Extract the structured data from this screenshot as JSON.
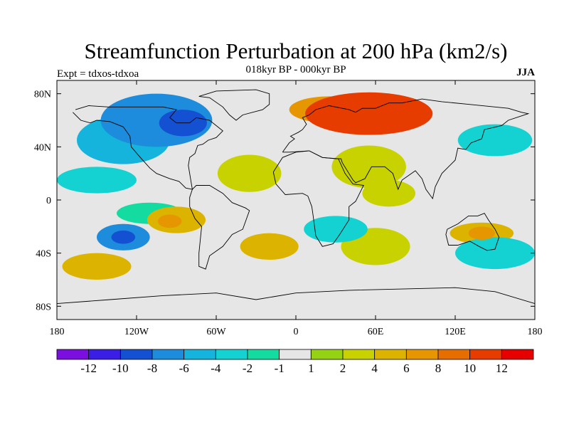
{
  "figure": {
    "title": "Streamfunction Perturbation at 200 hPa (km2/s)",
    "left_label": "Expt = tdxos-tdxoa",
    "center_label": "018kyr BP - 000kyr BP",
    "right_label": "JJA"
  },
  "map": {
    "projection": "cylindrical-equidistant",
    "lon_range": [
      -180,
      180
    ],
    "lat_range": [
      -90,
      90
    ],
    "lon_ticks": [
      {
        "value": -180,
        "label": "180"
      },
      {
        "value": -120,
        "label": "120W"
      },
      {
        "value": -60,
        "label": "60W"
      },
      {
        "value": 0,
        "label": "0"
      },
      {
        "value": 60,
        "label": "60E"
      },
      {
        "value": 120,
        "label": "120E"
      },
      {
        "value": 180,
        "label": "180"
      }
    ],
    "lat_ticks": [
      {
        "value": 80,
        "label": "80N"
      },
      {
        "value": 40,
        "label": "40N"
      },
      {
        "value": 0,
        "label": "0"
      },
      {
        "value": -40,
        "label": "40S"
      },
      {
        "value": -80,
        "label": "80S"
      }
    ],
    "background_color": "#e6e6e6"
  },
  "colorbar": {
    "colors": [
      "#7a0fe0",
      "#3a1ee6",
      "#1450d2",
      "#1e8cdc",
      "#14b4dc",
      "#14d2d2",
      "#14dca0",
      "#e6e6e6",
      "#96d214",
      "#c8d200",
      "#dcb400",
      "#e69600",
      "#e66e00",
      "#e63c00",
      "#e60000"
    ],
    "labels": [
      "-12",
      "-10",
      "-8",
      "-6",
      "-4",
      "-2",
      "-1",
      "1",
      "2",
      "4",
      "6",
      "8",
      "10",
      "12"
    ]
  },
  "field": [
    {
      "lon": -105,
      "lat": 60,
      "value": -8,
      "rx": 42,
      "ry": 20
    },
    {
      "lon": -85,
      "lat": 58,
      "value": -10,
      "rx": 18,
      "ry": 10
    },
    {
      "lon": -130,
      "lat": 45,
      "value": -6,
      "rx": 35,
      "ry": 18
    },
    {
      "lon": -150,
      "lat": 15,
      "value": -4,
      "rx": 30,
      "ry": 10
    },
    {
      "lon": -130,
      "lat": -28,
      "value": -8,
      "rx": 20,
      "ry": 10
    },
    {
      "lon": -130,
      "lat": -28,
      "value": -10,
      "rx": 9,
      "ry": 5
    },
    {
      "lon": -110,
      "lat": -10,
      "value": -2,
      "rx": 25,
      "ry": 8
    },
    {
      "lon": 55,
      "lat": 65,
      "value": 10,
      "rx": 48,
      "ry": 16
    },
    {
      "lon": 25,
      "lat": 68,
      "value": 6,
      "rx": 30,
      "ry": 10
    },
    {
      "lon": -35,
      "lat": 20,
      "value": 2,
      "rx": 24,
      "ry": 14
    },
    {
      "lon": 55,
      "lat": 25,
      "value": 2,
      "rx": 28,
      "ry": 16
    },
    {
      "lon": -90,
      "lat": -15,
      "value": 4,
      "rx": 22,
      "ry": 10
    },
    {
      "lon": -95,
      "lat": -16,
      "value": 6,
      "rx": 9,
      "ry": 5
    },
    {
      "lon": 60,
      "lat": -35,
      "value": 2,
      "rx": 26,
      "ry": 14
    },
    {
      "lon": 30,
      "lat": -22,
      "value": -4,
      "rx": 24,
      "ry": 10
    },
    {
      "lon": 140,
      "lat": -25,
      "value": 4,
      "rx": 24,
      "ry": 8
    },
    {
      "lon": 140,
      "lat": -25,
      "value": 6,
      "rx": 10,
      "ry": 5
    },
    {
      "lon": 150,
      "lat": -40,
      "value": -4,
      "rx": 30,
      "ry": 12
    },
    {
      "lon": 150,
      "lat": 45,
      "value": -4,
      "rx": 28,
      "ry": 12
    },
    {
      "lon": -20,
      "lat": -35,
      "value": 4,
      "rx": 22,
      "ry": 10
    },
    {
      "lon": -150,
      "lat": -50,
      "value": 4,
      "rx": 26,
      "ry": 10
    },
    {
      "lon": 70,
      "lat": 5,
      "value": 2,
      "rx": 20,
      "ry": 10
    }
  ],
  "coastlines": [
    [
      [
        -168,
        66
      ],
      [
        -162,
        60
      ],
      [
        -155,
        58
      ],
      [
        -150,
        60
      ],
      [
        -140,
        59
      ],
      [
        -130,
        55
      ],
      [
        -125,
        48
      ],
      [
        -124,
        40
      ],
      [
        -118,
        33
      ],
      [
        -110,
        24
      ],
      [
        -105,
        20
      ],
      [
        -95,
        16
      ],
      [
        -88,
        14
      ],
      [
        -83,
        9
      ],
      [
        -78,
        8
      ],
      [
        -81,
        26
      ],
      [
        -80,
        32
      ],
      [
        -76,
        35
      ],
      [
        -74,
        41
      ],
      [
        -70,
        42
      ],
      [
        -66,
        45
      ],
      [
        -60,
        47
      ],
      [
        -55,
        52
      ],
      [
        -60,
        56
      ],
      [
        -65,
        60
      ],
      [
        -75,
        62
      ],
      [
        -80,
        58
      ],
      [
        -90,
        58
      ],
      [
        -95,
        62
      ],
      [
        -90,
        68
      ],
      [
        -100,
        70
      ],
      [
        -115,
        70
      ],
      [
        -130,
        70
      ],
      [
        -141,
        70
      ],
      [
        -156,
        71
      ],
      [
        -166,
        68
      ]
    ],
    [
      [
        -78,
        8
      ],
      [
        -75,
        11
      ],
      [
        -65,
        11
      ],
      [
        -55,
        5
      ],
      [
        -48,
        -2
      ],
      [
        -38,
        -6
      ],
      [
        -35,
        -8
      ],
      [
        -40,
        -22
      ],
      [
        -48,
        -26
      ],
      [
        -55,
        -35
      ],
      [
        -65,
        -42
      ],
      [
        -68,
        -52
      ],
      [
        -73,
        -50
      ],
      [
        -73,
        -40
      ],
      [
        -72,
        -30
      ],
      [
        -71,
        -20
      ],
      [
        -76,
        -14
      ],
      [
        -80,
        -5
      ],
      [
        -80,
        2
      ],
      [
        -78,
        8
      ]
    ],
    [
      [
        -10,
        36
      ],
      [
        -5,
        43
      ],
      [
        -1,
        46
      ],
      [
        -4,
        48
      ],
      [
        2,
        51
      ],
      [
        5,
        53
      ],
      [
        8,
        57
      ],
      [
        5,
        62
      ],
      [
        10,
        64
      ],
      [
        15,
        68
      ],
      [
        25,
        71
      ],
      [
        40,
        68
      ],
      [
        45,
        66
      ],
      [
        50,
        69
      ],
      [
        60,
        69
      ],
      [
        70,
        73
      ],
      [
        80,
        73
      ],
      [
        95,
        76
      ],
      [
        110,
        74
      ],
      [
        130,
        72
      ],
      [
        150,
        70
      ],
      [
        160,
        69
      ],
      [
        170,
        66
      ],
      [
        175,
        65
      ],
      [
        160,
        60
      ],
      [
        155,
        56
      ],
      [
        142,
        53
      ],
      [
        140,
        46
      ],
      [
        132,
        43
      ],
      [
        128,
        38
      ],
      [
        122,
        39
      ],
      [
        120,
        30
      ],
      [
        110,
        20
      ],
      [
        105,
        10
      ],
      [
        103,
        1
      ],
      [
        98,
        8
      ],
      [
        95,
        16
      ],
      [
        90,
        22
      ],
      [
        80,
        15
      ],
      [
        77,
        8
      ],
      [
        73,
        20
      ],
      [
        67,
        25
      ],
      [
        57,
        25
      ],
      [
        52,
        16
      ],
      [
        45,
        13
      ],
      [
        43,
        15
      ],
      [
        35,
        28
      ],
      [
        34,
        31
      ],
      [
        30,
        31
      ],
      [
        20,
        32
      ],
      [
        10,
        37
      ],
      [
        -5,
        36
      ],
      [
        -10,
        36
      ]
    ],
    [
      [
        -17,
        21
      ],
      [
        -15,
        12
      ],
      [
        -8,
        4
      ],
      [
        5,
        5
      ],
      [
        9,
        3
      ],
      [
        12,
        -5
      ],
      [
        13,
        -12
      ],
      [
        15,
        -27
      ],
      [
        20,
        -35
      ],
      [
        28,
        -33
      ],
      [
        33,
        -26
      ],
      [
        40,
        -15
      ],
      [
        40,
        -5
      ],
      [
        45,
        -1
      ],
      [
        51,
        11
      ],
      [
        43,
        12
      ],
      [
        37,
        20
      ],
      [
        32,
        31
      ],
      [
        20,
        32
      ],
      [
        10,
        37
      ],
      [
        0,
        36
      ],
      [
        -10,
        32
      ],
      [
        -17,
        21
      ]
    ],
    [
      [
        114,
        -22
      ],
      [
        122,
        -18
      ],
      [
        130,
        -12
      ],
      [
        137,
        -12
      ],
      [
        142,
        -10
      ],
      [
        145,
        -15
      ],
      [
        150,
        -22
      ],
      [
        153,
        -28
      ],
      [
        150,
        -37
      ],
      [
        144,
        -38
      ],
      [
        138,
        -35
      ],
      [
        131,
        -31
      ],
      [
        122,
        -34
      ],
      [
        115,
        -34
      ],
      [
        113,
        -26
      ],
      [
        114,
        -22
      ]
    ],
    [
      [
        -73,
        78
      ],
      [
        -60,
        82
      ],
      [
        -30,
        83
      ],
      [
        -20,
        80
      ],
      [
        -20,
        72
      ],
      [
        -25,
        68
      ],
      [
        -40,
        64
      ],
      [
        -45,
        60
      ],
      [
        -50,
        64
      ],
      [
        -55,
        70
      ],
      [
        -65,
        77
      ],
      [
        -73,
        78
      ]
    ],
    [
      [
        -180,
        -78
      ],
      [
        -140,
        -75
      ],
      [
        -100,
        -72
      ],
      [
        -60,
        -70
      ],
      [
        -30,
        -75
      ],
      [
        0,
        -70
      ],
      [
        40,
        -68
      ],
      [
        80,
        -67
      ],
      [
        120,
        -66
      ],
      [
        150,
        -69
      ],
      [
        180,
        -78
      ]
    ]
  ]
}
